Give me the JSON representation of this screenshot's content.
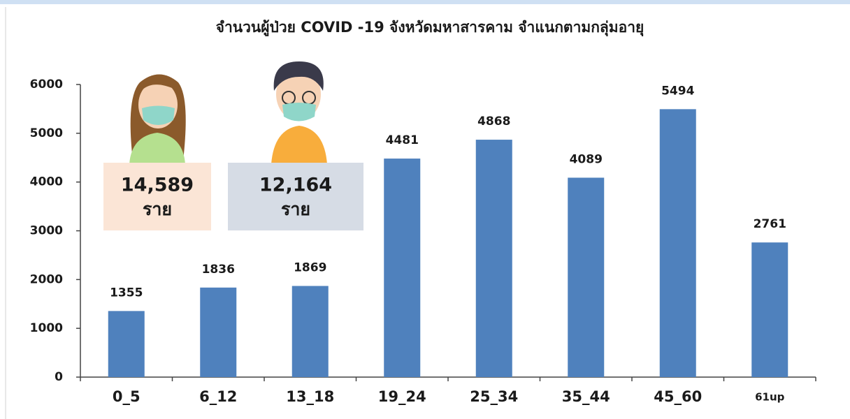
{
  "chart_data": {
    "type": "bar",
    "title": "จำนวนผู้ป่วย COVID -19 จังหวัดมหาสารคาม จำแนกตามกลุ่มอายุ",
    "categories": [
      "0_5",
      "6_12",
      "13_18",
      "19_24",
      "25_34",
      "35_44",
      "45_60",
      "61up"
    ],
    "values": [
      1355,
      1836,
      1869,
      4481,
      4868,
      4089,
      5494,
      2761
    ],
    "color": "#4f81bd",
    "ylim": [
      0,
      6000
    ],
    "yticks": [
      0,
      1000,
      2000,
      3000,
      4000,
      5000,
      6000
    ],
    "grid": false,
    "annotations": [
      {
        "text": "14,589",
        "unit": "ราย"
      },
      {
        "text": "12,164",
        "unit": "ราย"
      }
    ]
  }
}
